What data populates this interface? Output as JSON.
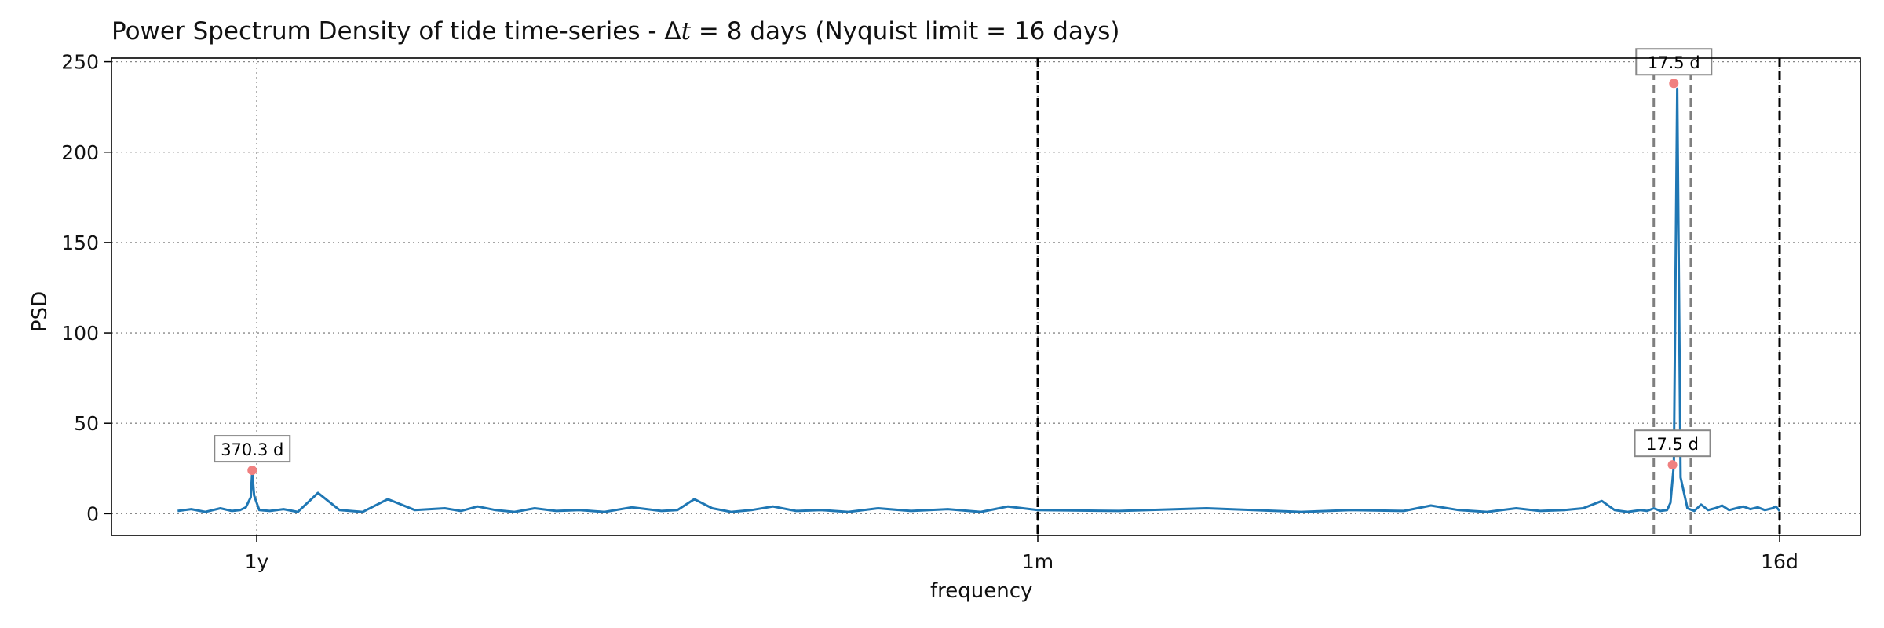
{
  "title": {
    "prefix": "Power Spectrum Density of tide time-series - Δ",
    "symbol": "t",
    "suffix": " = 8 days (Nyquist limit = 16 days)"
  },
  "chart_data": {
    "type": "line",
    "xscale": "frequency (log, 1/days)",
    "xlim_days": [
      600,
      13
    ],
    "xlabel": "frequency",
    "ylabel": "PSD",
    "ylim": [
      -12,
      252
    ],
    "yticks": [
      0,
      50,
      100,
      150,
      200,
      250
    ],
    "xticks": [
      {
        "label": "1y",
        "period_days": 365
      },
      {
        "label": "1m",
        "period_days": 30
      },
      {
        "label": "16d",
        "period_days": 16
      }
    ],
    "grid": true,
    "grid_style": "dotted",
    "line_color": "#1f77b4",
    "series": [
      {
        "period_days": [
          470,
          450,
          430,
          410,
          395,
          385,
          378,
          372,
          370.3,
          368,
          362,
          350,
          335,
          320,
          300,
          280,
          260,
          240,
          220,
          200,
          190,
          180,
          170,
          160,
          150,
          140,
          130,
          120,
          110,
          100,
          95,
          90,
          85,
          80,
          75,
          70,
          65,
          60,
          55,
          50,
          45,
          40,
          36,
          33,
          30,
          28,
          26,
          24,
          23,
          22,
          21.5,
          21,
          20.5,
          20,
          19.6,
          19.2,
          18.9,
          18.6,
          18.4,
          18.2,
          18.0,
          17.9,
          17.8,
          17.7,
          17.6,
          17.55,
          17.5,
          17.45,
          17.4,
          17.3,
          17.2,
          17.1,
          17.0,
          16.9,
          16.8,
          16.7,
          16.6,
          16.5,
          16.4,
          16.3,
          16.2,
          16.1,
          16.05,
          16.0
        ],
        "psd": [
          1.5,
          2.5,
          1.0,
          3.0,
          1.5,
          2.0,
          3.5,
          9.0,
          23.0,
          10.0,
          2.0,
          1.5,
          2.5,
          1.0,
          11.5,
          2.0,
          1.0,
          8.0,
          2.0,
          3.0,
          1.5,
          4.0,
          2.0,
          1.0,
          3.0,
          1.5,
          2.0,
          1.0,
          3.5,
          1.5,
          2.0,
          8.0,
          3.0,
          1.0,
          2.0,
          4.0,
          1.5,
          2.0,
          1.0,
          3.0,
          1.5,
          2.5,
          1.0,
          4.0,
          2.0,
          1.5,
          3.0,
          1.0,
          2.0,
          1.5,
          4.5,
          2.0,
          1.0,
          3.0,
          1.5,
          2.0,
          3.0,
          7.0,
          2.0,
          1.0,
          2.0,
          1.5,
          3.0,
          1.5,
          2.0,
          6.0,
          27.0,
          235.0,
          20.0,
          3.0,
          1.5,
          5.0,
          2.0,
          3.0,
          4.5,
          2.0,
          3.0,
          4.0,
          2.5,
          3.5,
          2.0,
          3.0,
          4.0,
          1.5
        ]
      }
    ],
    "peaks": [
      {
        "label": "370.3 d",
        "period_days": 370.3,
        "psd": 24
      },
      {
        "label": "17.5 d",
        "period_days": 17.52,
        "psd": 27
      },
      {
        "label": "17.5 d",
        "period_days": 17.5,
        "psd": 238
      }
    ],
    "black_dashed_lines_period_days": [
      30,
      16
    ],
    "gray_dashed_lines_period_days": [
      17.8,
      17.25
    ]
  }
}
